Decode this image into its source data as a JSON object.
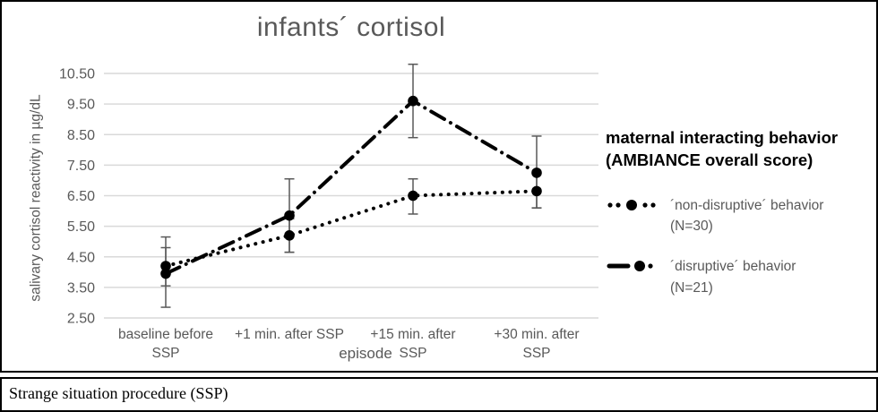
{
  "title": "infants´ cortisol",
  "y_axis_label": "salivary cortisol reactivity in µg/dL",
  "x_axis_label": "episode",
  "caption": "Strange situation procedure (SSP)",
  "legend": {
    "title": "maternal interacting behavior (AMBIANCE overall score)",
    "items": [
      {
        "label": "´non-disruptive´ behavior (N=30)",
        "style": "dotted"
      },
      {
        "label": "´disruptive´ behavior (N=21)",
        "style": "dashdot"
      }
    ]
  },
  "chart_data": {
    "type": "line",
    "title": "infants´ cortisol",
    "xlabel": "episode",
    "ylabel": "salivary cortisol reactivity in µg/dL",
    "ylim": [
      2.5,
      10.5
    ],
    "y_tick_step": 1.0,
    "y_tick_labels": [
      "2.50",
      "3.50",
      "4.50",
      "5.50",
      "6.50",
      "7.50",
      "8.50",
      "9.50",
      "10.50"
    ],
    "grid": true,
    "legend_position": "right",
    "categories": [
      "baseline before SSP",
      "+1 min. after SSP",
      "+15 min. after SSP",
      "+30 min. after SSP"
    ],
    "category_label_lines": [
      [
        "baseline before",
        "SSP"
      ],
      [
        "+1 min. after SSP"
      ],
      [
        "+15 min. after",
        "SSP"
      ],
      [
        "+30 min. after",
        "SSP"
      ]
    ],
    "series": [
      {
        "name": "´non-disruptive´ behavior (N=30)",
        "line_style": "dotted",
        "values": [
          4.2,
          5.2,
          6.5,
          6.65
        ],
        "error_low": [
          3.55,
          4.65,
          5.9,
          6.1
        ],
        "error_high": [
          4.8,
          5.75,
          7.05,
          7.2
        ]
      },
      {
        "name": "´disruptive´ behavior (N=21)",
        "line_style": "dashdot",
        "values": [
          3.95,
          5.85,
          9.6,
          7.25
        ],
        "error_low": [
          2.85,
          4.65,
          8.4,
          6.1
        ],
        "error_high": [
          5.15,
          7.05,
          10.8,
          8.45
        ]
      }
    ],
    "colors": {
      "series": "#000000",
      "grid": "#d9d9d9",
      "error_bar": "#595959",
      "text_gray": "#595959"
    }
  }
}
